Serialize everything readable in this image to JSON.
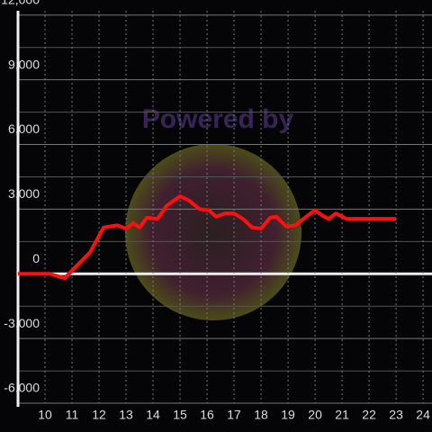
{
  "chart_data": {
    "type": "line",
    "watermark": "Powered by",
    "x": [
      9,
      10.17,
      10.73,
      11,
      11.67,
      12.17,
      12.67,
      13,
      13.27,
      13.5,
      13.77,
      14.17,
      14.5,
      15,
      15.33,
      15.73,
      16.07,
      16.33,
      16.67,
      17,
      17.33,
      17.67,
      18,
      18.33,
      18.57,
      18.93,
      19.27,
      19.67,
      20,
      20.27,
      20.5,
      20.77,
      21.17,
      21.5,
      23
    ],
    "series": [
      {
        "color": "#ff1010",
        "values": [
          0,
          0,
          -200,
          150,
          1000,
          2150,
          2250,
          2100,
          2350,
          2150,
          2600,
          2550,
          3150,
          3600,
          3400,
          3000,
          2950,
          2650,
          2800,
          2800,
          2550,
          2150,
          2100,
          2600,
          2650,
          2200,
          2250,
          2650,
          2950,
          2700,
          2550,
          2800,
          2550,
          2550,
          2550
        ]
      }
    ],
    "xlim": [
      9,
      24.33
    ],
    "ylim": [
      -6000,
      12200
    ],
    "xticks": [
      10,
      11,
      12,
      13,
      14,
      15,
      16,
      17,
      18,
      19,
      20,
      21,
      22,
      23,
      24
    ],
    "yticks": [
      {
        "value": -6000,
        "label": "-6,000"
      },
      {
        "value": -3000,
        "label": "-3,000"
      },
      0,
      {
        "value": 3000,
        "label": "3,000"
      },
      {
        "value": 6000,
        "label": "6,000"
      },
      {
        "value": 9000,
        "label": "9,000"
      },
      {
        "value": 12000,
        "label": "12,000"
      }
    ],
    "grid": true
  }
}
